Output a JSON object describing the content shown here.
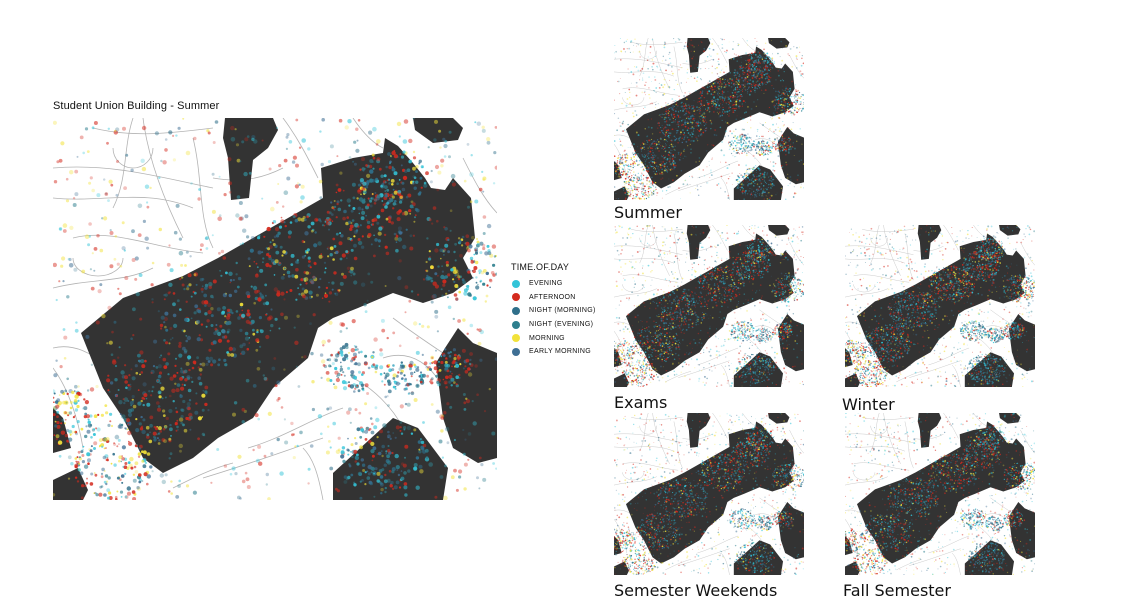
{
  "main": {
    "title": "Student Union Building - Summer"
  },
  "legend": {
    "title": "TIME.OF.DAY",
    "items": [
      {
        "label": "EVENING",
        "color": "#33c4d8"
      },
      {
        "label": "AFTERNOON",
        "color": "#d42a1e"
      },
      {
        "label": "NIGHT (MORNING)",
        "color": "#2f6f8a"
      },
      {
        "label": "NIGHT (EVENING)",
        "color": "#2e7f8e"
      },
      {
        "label": "MORNING",
        "color": "#f2e23a"
      },
      {
        "label": "EARLY MORNING",
        "color": "#3f6f94"
      }
    ]
  },
  "thumbnails": [
    {
      "key": "summer",
      "label": "Summer"
    },
    {
      "key": "exams",
      "label": "Exams"
    },
    {
      "key": "winter",
      "label": "Winter"
    },
    {
      "key": "weekends",
      "label": "Semester Weekends"
    },
    {
      "key": "fall",
      "label": "Fall Semester"
    }
  ],
  "colors": {
    "building": "#333333",
    "paths": "#9a9a9a",
    "background": "#ffffff"
  }
}
